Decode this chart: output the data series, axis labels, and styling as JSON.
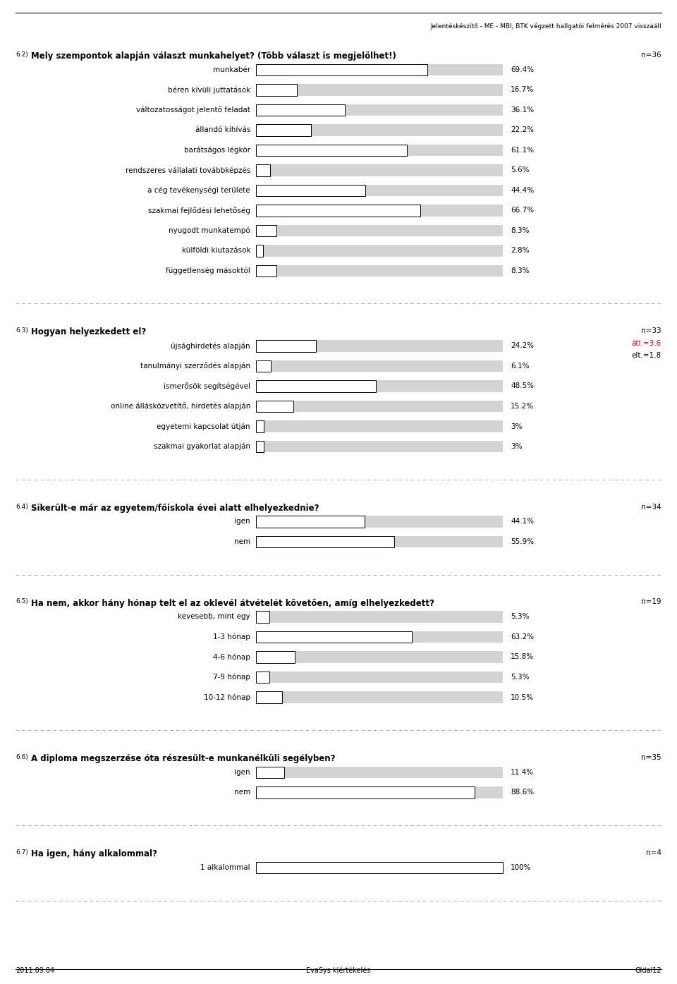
{
  "header_text": "Jelentéskészítő - ME - MBI, BTK végzett hallgatói felmérés 2007 visszaáll",
  "footer_left": "2011.09.04",
  "footer_center": "EvaSys kiértékelés",
  "footer_right": "Oldal12",
  "background_color": "#ffffff",
  "bar_bg_color": "#d3d3d3",
  "bar_fill_color": "#ffffff",
  "bar_border_color": "#000000",
  "sections": [
    {
      "id": "6.2",
      "title": "Mely szempontok alapján választ munkahelyet? (Több választ is megjelölhet!)",
      "n_label": "n=36",
      "items": [
        {
          "label": "munkabér",
          "value": 69.4,
          "pct": "69.4%"
        },
        {
          "label": "béren kívüli juttatások",
          "value": 16.7,
          "pct": "16.7%"
        },
        {
          "label": "változatosságot jelentő feladat",
          "value": 36.1,
          "pct": "36.1%"
        },
        {
          "label": "állandó kihívás",
          "value": 22.2,
          "pct": "22.2%"
        },
        {
          "label": "barátságos légkör",
          "value": 61.1,
          "pct": "61.1%"
        },
        {
          "label": "rendszeres vállalati továbbképzés",
          "value": 5.6,
          "pct": "5.6%"
        },
        {
          "label": "a cég tevékenységi területe",
          "value": 44.4,
          "pct": "44.4%"
        },
        {
          "label": "szakmai fejlődési lehetőség",
          "value": 66.7,
          "pct": "66.7%"
        },
        {
          "label": "nyugodt munkatempó",
          "value": 8.3,
          "pct": "8.3%"
        },
        {
          "label": "külföldi kiutazások",
          "value": 2.8,
          "pct": "2.8%"
        },
        {
          "label": "függetlenség másoktól",
          "value": 8.3,
          "pct": "8.3%"
        }
      ]
    },
    {
      "id": "6.3",
      "title": "Hogyan helyezkedett el?",
      "n_label": "n=33",
      "extra_labels": [
        "átl.=3.6",
        "elt.=1.8"
      ],
      "extra_colors": [
        "#cc0000",
        "#000000"
      ],
      "items": [
        {
          "label": "újsághirdetés alapján",
          "value": 24.2,
          "pct": "24.2%"
        },
        {
          "label": "tanulmányi szerződés alapján",
          "value": 6.1,
          "pct": "6.1%"
        },
        {
          "label": "ismerősök segítségével",
          "value": 48.5,
          "pct": "48.5%"
        },
        {
          "label": "online állásközvetítő, hirdetés alapján",
          "value": 15.2,
          "pct": "15.2%"
        },
        {
          "label": "egyetemi kapcsolat útján",
          "value": 3.0,
          "pct": "3%"
        },
        {
          "label": "szakmai gyakorlat alapján",
          "value": 3.0,
          "pct": "3%"
        }
      ]
    },
    {
      "id": "6.4",
      "title": "Sikerült-e már az egyetem/főiskola évei alatt elhelyezkednie?",
      "n_label": "n=34",
      "items": [
        {
          "label": "igen",
          "value": 44.1,
          "pct": "44.1%"
        },
        {
          "label": "nem",
          "value": 55.9,
          "pct": "55.9%"
        }
      ]
    },
    {
      "id": "6.5",
      "title": "Ha nem, akkor hány hónap telt el az oklevél átvételét követően, amíg elhelyezkedett?",
      "n_label": "n=19",
      "items": [
        {
          "label": "kevesebb, mint egy",
          "value": 5.3,
          "pct": "5.3%"
        },
        {
          "label": "1-3 hónap",
          "value": 63.2,
          "pct": "63.2%"
        },
        {
          "label": "4-6 hónap",
          "value": 15.8,
          "pct": "15.8%"
        },
        {
          "label": "7-9 hónap",
          "value": 5.3,
          "pct": "5.3%"
        },
        {
          "label": "10-12 hónap",
          "value": 10.5,
          "pct": "10.5%"
        }
      ]
    },
    {
      "id": "6.6",
      "title": "A diploma megszerzése óta részesült-e munkanélküli segélyben?",
      "n_label": "n=35",
      "items": [
        {
          "label": "igen",
          "value": 11.4,
          "pct": "11.4%"
        },
        {
          "label": "nem",
          "value": 88.6,
          "pct": "88.6%"
        }
      ]
    },
    {
      "id": "6.7",
      "title": "Ha igen, hány alkalommal?",
      "n_label": "n=4",
      "items": [
        {
          "label": "1 alkalommal",
          "value": 100.0,
          "pct": "100%"
        }
      ]
    }
  ]
}
